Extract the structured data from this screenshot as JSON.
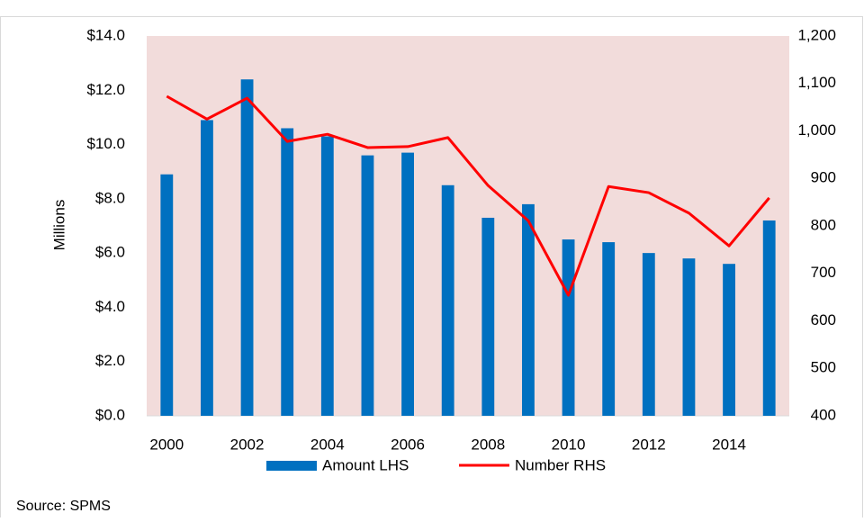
{
  "chart_data": {
    "type": "bar-line",
    "y_label": "Millions",
    "source": "Source: SPMS",
    "categories": [
      "2000",
      null,
      "2002",
      null,
      "2004",
      null,
      "2006",
      null,
      "2008",
      null,
      "2010",
      null,
      "2012",
      null,
      "2014",
      null
    ],
    "series": [
      {
        "name": "Amount LHS",
        "type": "bar",
        "color": "#0070c0",
        "axis": "y",
        "values": [
          8.9,
          10.9,
          12.4,
          10.6,
          10.3,
          9.6,
          9.7,
          8.5,
          7.3,
          7.8,
          6.5,
          6.4,
          6.0,
          5.8,
          5.6,
          7.2
        ]
      },
      {
        "name": "Number RHS",
        "type": "line",
        "color": "#ff0000",
        "axis": "y2",
        "values": [
          1073,
          1025,
          1069,
          978,
          993,
          965,
          967,
          986,
          885,
          811,
          654,
          883,
          870,
          827,
          758,
          859
        ]
      }
    ],
    "ylim": [
      0,
      14
    ],
    "yticks": [
      {
        "value": 0,
        "label": "$0.0"
      },
      {
        "value": 2,
        "label": "$2.0"
      },
      {
        "value": 4,
        "label": "$4.0"
      },
      {
        "value": 6,
        "label": "$6.0"
      },
      {
        "value": 8,
        "label": "$8.0"
      },
      {
        "value": 10,
        "label": "$10.0"
      },
      {
        "value": 12,
        "label": "$12.0"
      },
      {
        "value": 14,
        "label": "$14.0"
      }
    ],
    "y2lim": [
      400,
      1200
    ],
    "y2ticks": [
      400,
      500,
      600,
      700,
      800,
      900,
      {
        "value": 1000,
        "label": "1,000"
      },
      {
        "value": 1100,
        "label": "1,100"
      },
      {
        "value": 1200,
        "label": "1,200"
      }
    ],
    "plot_background": "#f2dcdb"
  }
}
